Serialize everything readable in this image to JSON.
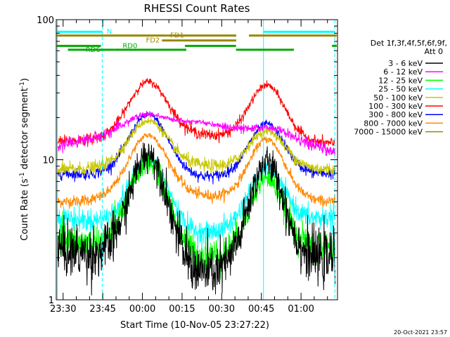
{
  "chart_data": {
    "type": "line",
    "title": "RHESSI Count Rates",
    "xlabel": "Start Time (10-Nov-05 23:27:22)",
    "ylabel": "Count Rate (s⁻¹ detector segment⁻¹)",
    "ylabel_main": "Count Rate (s",
    "ylabel_mid": " detector segment",
    "ylabel_end": ")",
    "ylabel_sup": "-1",
    "y_scale": "log",
    "ylim": [
      1,
      100
    ],
    "xlim_minutes": [
      -32.6,
      73.8
    ],
    "xticks": [
      {
        "label": "23:30",
        "min": -30
      },
      {
        "label": "23:45",
        "min": -15
      },
      {
        "label": "00:00",
        "min": 0
      },
      {
        "label": "00:15",
        "min": 15
      },
      {
        "label": "00:30",
        "min": 30
      },
      {
        "label": "00:45",
        "min": 45
      },
      {
        "label": "01:00",
        "min": 60
      }
    ],
    "yticks": [
      {
        "label": "1",
        "value": 1
      },
      {
        "label": "10",
        "value": 10
      },
      {
        "label": "100",
        "value": 100
      }
    ],
    "legend_title_1": "Det 1f,3f,4f,5f,6f,9f,",
    "legend_title_2": "Att 0",
    "legend_position": "right",
    "series": [
      {
        "name": "3 - 6 keV",
        "color": "#000000",
        "peak1": 11,
        "peak2": 9.5,
        "base_start": 2.3,
        "trough": 1.5,
        "base_end": 2.0,
        "noise": 0.14
      },
      {
        "name": "6 - 12 keV",
        "color": "#ff00ff",
        "peak1": 21,
        "peak2": 17,
        "base_start": 12.5,
        "trough": 18.5,
        "base_end": 11.5,
        "noise": 0.03
      },
      {
        "name": "12 - 25 keV",
        "color": "#00ff00",
        "peak1": 9.5,
        "peak2": 7.3,
        "base_start": 2.7,
        "trough": 2.0,
        "base_end": 2.4,
        "noise": 0.09
      },
      {
        "name": "25 - 50 keV",
        "color": "#00ffff",
        "peak1": 10,
        "peak2": 8.5,
        "base_start": 3.9,
        "trough": 2.9,
        "base_end": 3.9,
        "noise": 0.06
      },
      {
        "name": "50 - 100 keV",
        "color": "#c8c800",
        "peak1": 19,
        "peak2": 16,
        "base_start": 8.5,
        "trough": 9.0,
        "base_end": 8.5,
        "noise": 0.035
      },
      {
        "name": "100 - 300 keV",
        "color": "#ff0000",
        "peak1": 36,
        "peak2": 34,
        "base_start": 13.5,
        "trough": 15.0,
        "base_end": 13.0,
        "noise": 0.03
      },
      {
        "name": "300 - 800 keV",
        "color": "#0000ff",
        "peak1": 21,
        "peak2": 18,
        "base_start": 8.0,
        "trough": 7.5,
        "base_end": 8.0,
        "noise": 0.03
      },
      {
        "name": "800 - 7000 keV",
        "color": "#ff8800",
        "peak1": 15,
        "peak2": 14,
        "base_start": 5.0,
        "trough": 5.5,
        "base_end": 5.0,
        "noise": 0.03
      },
      {
        "name": "7000 - 15000 keV",
        "color": "#998800",
        "peak1": 0,
        "peak2": 0,
        "base_start": 0,
        "trough": 0,
        "base_end": 0,
        "noise": 0
      }
    ],
    "vlines_min": [
      -32.2,
      -15.2,
      45.8,
      72.8
    ],
    "flag_bars": [
      {
        "label": "N",
        "color": "#00ffff",
        "y_value": 82,
        "segments": [
          [
            -32.4,
            -15.2
          ],
          [
            45.8,
            72.8
          ]
        ],
        "label_min": -13.5
      },
      {
        "label": "FD1",
        "color": "#998800",
        "y_value": 77,
        "segments": [
          [
            -32.4,
            9.5
          ],
          [
            9.5,
            35.5
          ],
          [
            40.3,
            73.5
          ]
        ],
        "label_min": 10.5
      },
      {
        "label": "FD2",
        "color": "#998800",
        "y_value": 71,
        "segments": [
          [
            7.4,
            35.5
          ]
        ],
        "label_min": 1.3
      },
      {
        "label": "RD0",
        "color": "#00aa00",
        "y_value": 65,
        "segments": [
          [
            -32.4,
            -15.7
          ],
          [
            16.1,
            35.4
          ],
          [
            71.7,
            73.5
          ]
        ],
        "label_min": -7.5
      },
      {
        "label": "RD6",
        "color": "#00aa00",
        "y_value": 61,
        "segments": [
          [
            -28.2,
            -10.6
          ],
          [
            -10.6,
            16.6
          ],
          [
            35.4,
            57.3
          ]
        ],
        "label_min": -21.5
      }
    ],
    "grid": false
  },
  "timestamp": "20-Oct-2021 23:57"
}
